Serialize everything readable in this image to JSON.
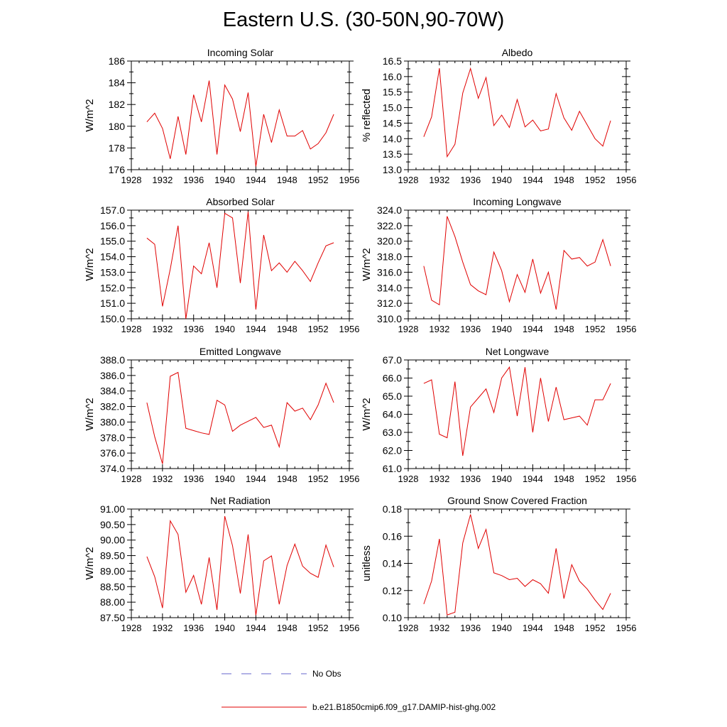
{
  "title": "Eastern U.S. (30-50N,90-70W)",
  "colors": {
    "series": "#e00000",
    "no_obs": "#6666cc",
    "axis": "#000000"
  },
  "legend": {
    "no_obs_label": "No Obs",
    "model_label": "b.e21.B1850cmip6.f09_g17.DAMIP-hist-ghg.002"
  },
  "chart_data": [
    {
      "type": "line",
      "title": "Incoming Solar",
      "ylabel": "W/m^2",
      "xlim": [
        1928,
        1956
      ],
      "ylim": [
        176,
        186
      ],
      "xticks": [
        1928,
        1932,
        1936,
        1940,
        1944,
        1948,
        1952,
        1956
      ],
      "yticks": [
        "176",
        "178",
        "180",
        "182",
        "184",
        "186"
      ],
      "x": [
        1930,
        1931,
        1932,
        1933,
        1934,
        1935,
        1936,
        1937,
        1938,
        1939,
        1940,
        1941,
        1942,
        1943,
        1944,
        1945,
        1946,
        1947,
        1948,
        1949,
        1950,
        1951,
        1952,
        1953,
        1954
      ],
      "values": [
        180.4,
        181.2,
        179.8,
        177.0,
        180.9,
        177.4,
        182.9,
        180.4,
        184.2,
        177.4,
        183.8,
        182.5,
        179.5,
        183.1,
        176.3,
        181.1,
        178.5,
        181.5,
        179.1,
        179.1,
        179.6,
        177.9,
        178.4,
        179.4,
        181.1
      ]
    },
    {
      "type": "line",
      "title": "Albedo",
      "ylabel": "% reflected",
      "xlim": [
        1928,
        1956
      ],
      "ylim": [
        13.0,
        16.5
      ],
      "xticks": [
        1928,
        1932,
        1936,
        1940,
        1944,
        1948,
        1952,
        1956
      ],
      "yticks": [
        "13.0",
        "13.5",
        "14.0",
        "14.5",
        "15.0",
        "15.5",
        "16.0",
        "16.5"
      ],
      "x": [
        1930,
        1931,
        1932,
        1933,
        1934,
        1935,
        1936,
        1937,
        1938,
        1939,
        1940,
        1941,
        1942,
        1943,
        1944,
        1945,
        1946,
        1947,
        1948,
        1949,
        1950,
        1951,
        1952,
        1953,
        1954
      ],
      "values": [
        14.06,
        14.7,
        16.27,
        13.42,
        13.82,
        15.47,
        16.26,
        15.3,
        15.97,
        14.42,
        14.76,
        14.36,
        15.26,
        14.38,
        14.6,
        14.25,
        14.31,
        15.45,
        14.67,
        14.27,
        14.88,
        14.44,
        14.0,
        13.76,
        14.58
      ]
    },
    {
      "type": "line",
      "title": "Absorbed Solar",
      "ylabel": "W/m^2",
      "xlim": [
        1928,
        1956
      ],
      "ylim": [
        150.0,
        157.0
      ],
      "xticks": [
        1928,
        1932,
        1936,
        1940,
        1944,
        1948,
        1952,
        1956
      ],
      "yticks": [
        "150.0",
        "151.0",
        "152.0",
        "153.0",
        "154.0",
        "155.0",
        "156.0",
        "157.0"
      ],
      "x": [
        1930,
        1931,
        1932,
        1933,
        1934,
        1935,
        1936,
        1937,
        1938,
        1939,
        1940,
        1941,
        1942,
        1943,
        1944,
        1945,
        1946,
        1947,
        1948,
        1949,
        1950,
        1951,
        1952,
        1953,
        1954
      ],
      "values": [
        155.2,
        154.8,
        150.8,
        153.2,
        156.0,
        150.0,
        153.4,
        152.9,
        154.9,
        152.0,
        156.8,
        156.5,
        152.3,
        156.9,
        150.6,
        155.4,
        153.1,
        153.6,
        153.0,
        153.7,
        153.1,
        152.4,
        153.6,
        154.7,
        154.9
      ]
    },
    {
      "type": "line",
      "title": "Incoming Longwave",
      "ylabel": "W/m^2",
      "xlim": [
        1928,
        1956
      ],
      "ylim": [
        310.0,
        324.0
      ],
      "xticks": [
        1928,
        1932,
        1936,
        1940,
        1944,
        1948,
        1952,
        1956
      ],
      "yticks": [
        "310.0",
        "312.0",
        "314.0",
        "316.0",
        "318.0",
        "320.0",
        "322.0",
        "324.0"
      ],
      "x": [
        1930,
        1931,
        1932,
        1933,
        1934,
        1935,
        1936,
        1937,
        1938,
        1939,
        1940,
        1941,
        1942,
        1943,
        1944,
        1945,
        1946,
        1947,
        1948,
        1949,
        1950,
        1951,
        1952,
        1953,
        1954
      ],
      "values": [
        316.8,
        312.4,
        311.8,
        323.2,
        320.6,
        317.3,
        314.4,
        313.6,
        313.1,
        318.6,
        316.2,
        312.2,
        315.7,
        313.4,
        317.7,
        313.3,
        316.0,
        311.2,
        318.8,
        317.7,
        317.9,
        316.8,
        317.3,
        320.2,
        316.8
      ]
    },
    {
      "type": "line",
      "title": "Emitted Longwave",
      "ylabel": "W/m^2",
      "xlim": [
        1928,
        1956
      ],
      "ylim": [
        374.0,
        388.0
      ],
      "xticks": [
        1928,
        1932,
        1936,
        1940,
        1944,
        1948,
        1952,
        1956
      ],
      "yticks": [
        "374.0",
        "376.0",
        "378.0",
        "380.0",
        "382.0",
        "384.0",
        "386.0",
        "388.0"
      ],
      "x": [
        1930,
        1931,
        1932,
        1933,
        1934,
        1935,
        1936,
        1937,
        1938,
        1939,
        1940,
        1941,
        1942,
        1943,
        1944,
        1945,
        1946,
        1947,
        1948,
        1949,
        1950,
        1951,
        1952,
        1953,
        1954
      ],
      "values": [
        382.5,
        378.1,
        374.6,
        385.9,
        386.4,
        379.2,
        378.9,
        378.6,
        378.4,
        382.8,
        382.2,
        378.8,
        379.6,
        380.1,
        380.6,
        379.3,
        379.6,
        376.8,
        382.5,
        381.4,
        381.8,
        380.3,
        382.2,
        385.0,
        382.5
      ]
    },
    {
      "type": "line",
      "title": "Net Longwave",
      "ylabel": "W/m^2",
      "xlim": [
        1928,
        1956
      ],
      "ylim": [
        61.0,
        67.0
      ],
      "xticks": [
        1928,
        1932,
        1936,
        1940,
        1944,
        1948,
        1952,
        1956
      ],
      "yticks": [
        "61.0",
        "62.0",
        "63.0",
        "64.0",
        "65.0",
        "66.0",
        "67.0"
      ],
      "x": [
        1930,
        1931,
        1932,
        1933,
        1934,
        1935,
        1936,
        1937,
        1938,
        1939,
        1940,
        1941,
        1942,
        1943,
        1944,
        1945,
        1946,
        1947,
        1948,
        1949,
        1950,
        1951,
        1952,
        1953,
        1954
      ],
      "values": [
        65.7,
        65.9,
        62.9,
        62.7,
        65.8,
        61.7,
        64.4,
        64.9,
        65.4,
        64.1,
        66.0,
        66.6,
        63.9,
        66.6,
        63.0,
        66.0,
        63.6,
        65.5,
        63.7,
        63.8,
        63.9,
        63.4,
        64.8,
        64.8,
        65.7
      ]
    },
    {
      "type": "line",
      "title": "Net Radiation",
      "ylabel": "W/m^2",
      "xlim": [
        1928,
        1956
      ],
      "ylim": [
        87.5,
        91.0
      ],
      "xticks": [
        1928,
        1932,
        1936,
        1940,
        1944,
        1948,
        1952,
        1956
      ],
      "yticks": [
        "87.50",
        "88.00",
        "88.50",
        "89.00",
        "89.50",
        "90.00",
        "90.50",
        "91.00"
      ],
      "x": [
        1930,
        1931,
        1932,
        1933,
        1934,
        1935,
        1936,
        1937,
        1938,
        1939,
        1940,
        1941,
        1942,
        1943,
        1944,
        1945,
        1946,
        1947,
        1948,
        1949,
        1950,
        1951,
        1952,
        1953,
        1954
      ],
      "values": [
        89.47,
        88.82,
        87.81,
        90.62,
        90.18,
        88.32,
        88.86,
        87.93,
        89.44,
        87.75,
        90.77,
        89.82,
        88.28,
        90.18,
        87.58,
        89.33,
        89.49,
        87.93,
        89.18,
        89.87,
        89.16,
        88.93,
        88.8,
        89.84,
        89.13
      ]
    },
    {
      "type": "line",
      "title": "Ground Snow Covered Fraction",
      "ylabel": "unitless",
      "xlim": [
        1928,
        1956
      ],
      "ylim": [
        0.1,
        0.18
      ],
      "xticks": [
        1928,
        1932,
        1936,
        1940,
        1944,
        1948,
        1952,
        1956
      ],
      "yticks": [
        "0.10",
        "0.12",
        "0.14",
        "0.16",
        "0.18"
      ],
      "x": [
        1930,
        1931,
        1932,
        1933,
        1934,
        1935,
        1936,
        1937,
        1938,
        1939,
        1940,
        1941,
        1942,
        1943,
        1944,
        1945,
        1946,
        1947,
        1948,
        1949,
        1950,
        1951,
        1952,
        1953,
        1954
      ],
      "values": [
        0.11,
        0.127,
        0.158,
        0.102,
        0.104,
        0.155,
        0.176,
        0.151,
        0.165,
        0.133,
        0.131,
        0.128,
        0.129,
        0.123,
        0.128,
        0.125,
        0.118,
        0.151,
        0.114,
        0.139,
        0.127,
        0.121,
        0.113,
        0.106,
        0.118
      ]
    }
  ]
}
